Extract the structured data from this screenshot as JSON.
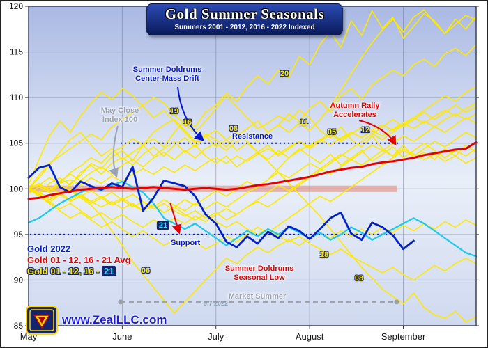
{
  "annotations": {
    "may_close_1": "May Close",
    "may_close_2": "Index 100",
    "drift_1": "Summer Doldrums",
    "drift_2": "Center-Mass Drift",
    "resistance": "Resistance",
    "autumn_1": "Autumn Rally",
    "autumn_2": "Accelerates",
    "support": "Support",
    "low_1": "Summer Doldrums",
    "low_2": "Seasonal Low",
    "market_summer": "Market Summer"
  },
  "legend": {
    "gold_2022": "Gold 2022",
    "gold_avg": "Gold 01 - 12, 16 - 21 Avg",
    "gold_years_prefix": "Gold 01 - 12, 16 - ",
    "gold_2021": "21"
  },
  "footer": {
    "website": "www.ZealLLC.com",
    "watermark": "9.7.2022"
  },
  "colors": {
    "yellow": "#ffe800",
    "red": "#e60000",
    "blue": "#0020c8",
    "cyan": "#18c8f0",
    "navy": "#14246e"
  },
  "chart_data": {
    "type": "line",
    "title": "Gold Summer Seasonals",
    "subtitle": "Summers 2001 - 2012, 2016 - 2022 Indexed",
    "ylim": [
      85,
      120
    ],
    "yticks": [
      85,
      90,
      95,
      100,
      105,
      110,
      115,
      120
    ],
    "months": [
      "May",
      "June",
      "July",
      "August",
      "September"
    ],
    "month_positions": [
      0,
      0.2093,
      0.4186,
      0.6279,
      0.8372
    ],
    "levels": {
      "resistance": {
        "value": 105,
        "color": "#0016cf"
      },
      "support": {
        "value": 95,
        "color": "#0016cf"
      },
      "market_summer": {
        "value": 87.6,
        "color": "#9aa0a6"
      },
      "index_band": {
        "from": 99.65,
        "to": 100.35,
        "color": "rgba(232,130,110,0.55)"
      }
    },
    "line_labels": [
      {
        "text": "19",
        "t": 0.325,
        "v": 108.5,
        "style": "yellow"
      },
      {
        "text": "16",
        "t": 0.355,
        "v": 107.3,
        "style": "yellow"
      },
      {
        "text": "08",
        "t": 0.458,
        "v": 106.6,
        "style": "yellow"
      },
      {
        "text": "11",
        "t": 0.615,
        "v": 107.3,
        "style": "yellow"
      },
      {
        "text": "05",
        "t": 0.678,
        "v": 106.2,
        "style": "yellow"
      },
      {
        "text": "12",
        "t": 0.752,
        "v": 106.4,
        "style": "yellow"
      },
      {
        "text": "20",
        "t": 0.572,
        "v": 112.6,
        "style": "yellow"
      },
      {
        "text": "06",
        "t": 0.262,
        "v": 91.0,
        "style": "yellow"
      },
      {
        "text": "18",
        "t": 0.66,
        "v": 92.8,
        "style": "yellow"
      },
      {
        "text": "08",
        "t": 0.738,
        "v": 90.2,
        "style": "yellow"
      },
      {
        "text": "21",
        "t": 0.3,
        "v": 96.0,
        "style": "cyan"
      }
    ],
    "series": [
      {
        "name": "2002",
        "color": "#ffe800",
        "width": 1.6,
        "values": [
          100,
          101.2,
          102.6,
          104.0,
          105.4,
          106.2,
          104.8,
          103.6,
          104.4,
          103.2,
          104.0,
          104.8,
          103.6,
          104.4,
          105.2,
          104.0,
          104.8,
          103.6,
          102.8,
          103.6,
          102.4,
          103.2,
          104.0,
          103.2,
          104.2,
          103.4,
          104.4,
          103.6,
          102.8,
          103.8,
          102.6,
          103.4,
          104.2,
          103.0,
          103.8,
          104.6,
          103.4,
          104.2,
          105.0,
          104.2,
          103.4,
          104.2,
          103.6,
          104.4
        ]
      },
      {
        "name": "2004",
        "color": "#ffe800",
        "width": 1.6,
        "values": [
          100,
          99.6,
          99.0,
          99.6,
          98.8,
          99.4,
          98.6,
          98.0,
          98.6,
          97.8,
          98.4,
          97.6,
          98.2,
          97.4,
          98.0,
          98.8,
          98.2,
          99.0,
          99.8,
          99.2,
          100.0,
          100.8,
          100.2,
          101.0,
          101.8,
          101.2,
          102.0,
          102.8,
          102.2,
          103.0,
          103.8,
          103.2,
          104.0,
          104.8,
          104.2,
          105.0,
          105.8,
          105.2,
          106.0,
          106.8,
          106.2,
          107.0,
          107.8,
          107.2
        ]
      },
      {
        "name": "2005",
        "color": "#ffe800",
        "width": 1.6,
        "values": [
          100,
          99.6,
          100.2,
          99.4,
          100.0,
          99.2,
          99.8,
          99.0,
          99.6,
          98.8,
          99.4,
          98.6,
          98.0,
          98.8,
          98.2,
          97.6,
          98.4,
          97.8,
          98.6,
          98.0,
          98.8,
          99.6,
          100.2,
          101.0,
          102.2,
          103.4,
          104.2,
          104.8,
          105.4,
          106.0,
          105.4,
          106.2,
          105.6,
          106.4,
          107.0,
          106.4,
          107.2,
          107.8,
          107.2,
          108.0,
          108.6,
          108.0,
          108.8,
          109.4
        ]
      },
      {
        "name": "2006",
        "color": "#ffe800",
        "width": 1.6,
        "values": [
          99.5,
          100.2,
          99.6,
          100.4,
          99.8,
          99.0,
          98.2,
          97.0,
          95.4,
          93.8,
          92.0,
          90.6,
          89.2,
          87.8,
          86.4,
          87.6,
          88.8,
          90.0,
          91.2,
          92.4,
          91.8,
          92.8,
          93.6,
          93.0,
          93.8,
          94.4,
          93.8,
          94.6,
          95.2,
          94.6,
          95.4,
          94.8,
          95.6,
          95.0,
          95.8,
          95.2,
          96.0,
          95.4,
          96.2,
          95.6,
          96.4,
          95.8,
          96.6,
          96.0
        ]
      },
      {
        "name": "2007",
        "color": "#ffe800",
        "width": 1.6,
        "values": [
          100.5,
          103.2,
          105.8,
          107.4,
          106.2,
          108.0,
          109.4,
          110.6,
          109.8,
          111.0,
          110.2,
          109.0,
          107.8,
          108.6,
          107.4,
          106.2,
          105.0,
          105.8,
          104.6,
          105.4,
          104.2,
          105.0,
          104.0,
          104.8,
          103.6,
          104.4,
          105.2,
          104.4,
          105.2,
          106.0,
          105.2,
          106.0,
          106.8,
          106.0,
          106.8,
          107.6,
          106.8,
          107.6,
          108.4,
          107.6,
          108.4,
          109.2,
          108.4,
          109.0
        ]
      },
      {
        "name": "2008",
        "color": "#ffe800",
        "width": 1.6,
        "values": [
          100,
          99.4,
          100.6,
          101.2,
          100.4,
          101.8,
          102.6,
          101.6,
          102.8,
          103.4,
          102.6,
          103.8,
          104.6,
          103.6,
          104.8,
          105.6,
          104.6,
          105.8,
          106.4,
          105.4,
          106.2,
          105.2,
          104.0,
          103.0,
          101.8,
          100.6,
          99.4,
          98.2,
          97.0,
          95.6,
          94.2,
          92.8,
          91.4,
          90.2,
          89.0,
          88.2,
          87.4,
          88.6,
          87.0,
          86.2,
          85.8,
          86.6,
          85.4,
          86.0
        ]
      },
      {
        "name": "2009",
        "color": "#ffe800",
        "width": 1.6,
        "values": [
          100,
          99.2,
          98.4,
          97.6,
          96.8,
          97.4,
          96.6,
          95.8,
          96.4,
          95.6,
          94.8,
          95.4,
          94.6,
          93.8,
          94.4,
          93.6,
          94.2,
          93.4,
          94.0,
          94.8,
          94.2,
          95.0,
          95.8,
          95.2,
          96.0,
          96.8,
          97.6,
          98.4,
          99.2,
          98.6,
          99.4,
          100.2,
          101.0,
          101.8,
          102.6,
          103.4,
          104.2,
          103.6,
          104.4,
          105.2,
          104.6,
          105.4,
          106.2,
          105.6
        ]
      },
      {
        "name": "2010",
        "color": "#ffe800",
        "width": 1.6,
        "values": [
          100,
          100.4,
          99.8,
          100.6,
          101.0,
          100.4,
          101.2,
          100.6,
          101.4,
          100.8,
          101.6,
          102.2,
          101.6,
          102.4,
          101.8,
          102.6,
          102.0,
          102.8,
          103.4,
          102.8,
          103.6,
          103.0,
          103.8,
          104.4,
          103.8,
          104.6,
          105.2,
          104.6,
          105.4,
          104.8,
          105.6,
          106.2,
          105.6,
          106.4,
          105.8,
          106.6,
          107.2,
          106.6,
          107.4,
          106.8,
          107.6,
          108.2,
          107.6,
          108.2
        ]
      },
      {
        "name": "2011",
        "color": "#ffe800",
        "width": 1.6,
        "values": [
          100,
          100.6,
          99.8,
          100.8,
          101.6,
          100.9,
          101.8,
          102.4,
          101.6,
          102.6,
          103.2,
          102.4,
          103.4,
          104.0,
          103.2,
          104.2,
          103.4,
          104.4,
          105.0,
          104.2,
          105.2,
          106.0,
          105.2,
          106.2,
          107.0,
          106.2,
          107.2,
          106.4,
          107.6,
          109.0,
          110.8,
          112.6,
          114.4,
          116.0,
          117.4,
          118.6,
          117.2,
          118.8,
          119.6,
          118.2,
          117.0,
          118.0,
          119.0,
          118.5
        ]
      },
      {
        "name": "2012",
        "color": "#ffe800",
        "width": 1.6,
        "values": [
          100,
          99.2,
          98.6,
          97.8,
          98.4,
          97.6,
          96.8,
          97.4,
          96.6,
          97.2,
          96.4,
          95.8,
          96.6,
          96.0,
          96.8,
          96.2,
          97.0,
          96.4,
          97.2,
          97.8,
          97.2,
          98.0,
          98.6,
          98.0,
          98.8,
          99.6,
          100.4,
          101.2,
          102.0,
          102.8,
          103.6,
          104.4,
          105.2,
          106.0,
          105.4,
          106.2,
          107.0,
          107.8,
          108.6,
          109.4,
          110.2,
          109.6,
          110.6,
          111.2
        ]
      },
      {
        "name": "2016",
        "color": "#ffe800",
        "width": 1.6,
        "values": [
          100,
          101.5,
          102.8,
          103.6,
          104.4,
          105.2,
          106.0,
          105.4,
          106.8,
          107.6,
          108.4,
          109.2,
          110.0,
          109.4,
          108.2,
          107.0,
          106.2,
          107.4,
          108.8,
          110.2,
          109.0,
          107.8,
          106.6,
          107.2,
          108.0,
          107.4,
          108.6,
          107.8,
          106.4,
          105.6,
          106.8,
          105.4,
          104.6,
          105.8,
          104.4,
          103.6,
          104.8,
          103.4,
          104.0,
          103.2,
          104.4,
          103.6,
          104.8,
          104.0
        ]
      },
      {
        "name": "2017",
        "color": "#ffe800",
        "width": 1.6,
        "values": [
          100,
          99.4,
          98.8,
          99.4,
          98.6,
          99.2,
          98.4,
          99.0,
          98.2,
          98.8,
          98.0,
          98.6,
          97.8,
          98.4,
          97.6,
          97.0,
          97.6,
          96.8,
          97.4,
          96.6,
          97.2,
          98.0,
          98.8,
          99.6,
          100.4,
          99.8,
          100.6,
          101.4,
          102.2,
          101.6,
          102.4,
          103.2,
          102.6,
          103.4,
          104.2,
          103.6,
          104.4,
          103.8,
          103.2,
          103.8,
          103.0,
          103.6,
          102.8,
          103.4
        ]
      },
      {
        "name": "2018",
        "color": "#ffe800",
        "width": 1.6,
        "values": [
          100,
          99.6,
          100.2,
          99.4,
          100.0,
          99.2,
          98.6,
          99.2,
          98.4,
          99.0,
          98.2,
          97.6,
          98.2,
          97.4,
          98.0,
          97.2,
          96.6,
          97.2,
          96.4,
          95.8,
          96.4,
          95.6,
          95.0,
          95.6,
          94.8,
          94.2,
          94.8,
          94.0,
          93.4,
          92.8,
          93.4,
          92.6,
          92.0,
          91.4,
          90.8,
          91.4,
          90.6,
          90.0,
          90.8,
          91.6,
          91.0,
          91.8,
          92.4,
          91.8
        ]
      },
      {
        "name": "2019",
        "color": "#ffe800",
        "width": 1.6,
        "values": [
          100,
          100.4,
          101.2,
          100.6,
          101.8,
          102.5,
          103.4,
          102.8,
          104.0,
          104.6,
          105.5,
          104.8,
          106.2,
          107.0,
          107.6,
          106.4,
          105.2,
          106.0,
          105.4,
          104.6,
          105.8,
          106.6,
          107.4,
          106.2,
          107.0,
          108.2,
          107.4,
          108.8,
          109.6,
          108.4,
          110.2,
          111.0,
          109.8,
          111.4,
          112.2,
          113.0,
          112.4,
          113.6,
          114.2,
          113.4,
          114.8,
          115.4,
          114.6,
          115.8
        ]
      },
      {
        "name": "2020",
        "color": "#ffe800",
        "width": 1.6,
        "values": [
          100,
          99.2,
          98.5,
          99.4,
          100.6,
          101.5,
          102.8,
          102.2,
          103.5,
          104.2,
          103.1,
          104.8,
          105.5,
          104.6,
          106.2,
          107.5,
          106.8,
          108.4,
          109.2,
          110.5,
          109.6,
          111.2,
          112.4,
          111.5,
          113.0,
          112.2,
          114.5,
          113.6,
          115.8,
          117.2,
          115.5,
          118.4,
          116.8,
          119.5,
          117.6,
          118.8,
          116.5,
          117.8,
          119.2,
          118.4,
          117.0,
          118.6,
          117.5,
          118.9
        ]
      },
      {
        "name": "2021",
        "color": "#18c8f0",
        "width": 2.2,
        "values": [
          96.3,
          96.8,
          97.6,
          98.4,
          99.0,
          99.6,
          100.2,
          99.8,
          100.4,
          100.8,
          100.2,
          99.6,
          98.4,
          96.8,
          96.2,
          95.6,
          96.2,
          95.4,
          94.6,
          93.8,
          94.6,
          95.4,
          94.8,
          95.6,
          95.0,
          95.8,
          95.2,
          94.6,
          95.2,
          94.4,
          95.0,
          95.8,
          95.2,
          94.4,
          95.0,
          95.6,
          96.2,
          96.8,
          96.2,
          95.4,
          94.6,
          93.8,
          93.0,
          92.6
        ]
      },
      {
        "name": "2022",
        "color": "#0020c8",
        "width": 2.8,
        "values": [
          101.2,
          102.3,
          102.6,
          100.2,
          99.6,
          100.8,
          100.3,
          99.9,
          100.6,
          100.2,
          102.4,
          97.6,
          99.0,
          100.9,
          100.6,
          100.3,
          99.2,
          97.2,
          96.2,
          94.2,
          93.6,
          94.8,
          94.0,
          95.3,
          94.6,
          95.9,
          95.4,
          94.5,
          95.6,
          96.8,
          97.4,
          95.1,
          94.4,
          96.3,
          95.8,
          94.9,
          93.4,
          94.3,
          null,
          null,
          null,
          null,
          null,
          null
        ]
      },
      {
        "name": "avg",
        "color": "#e60000",
        "width": 3,
        "values": [
          98.9,
          99.0,
          99.3,
          99.5,
          99.7,
          99.9,
          100.0,
          100.1,
          100.2,
          100.1,
          100.0,
          100.1,
          100.2,
          100.1,
          100.0,
          99.9,
          100.0,
          100.1,
          100.0,
          99.9,
          100.0,
          100.2,
          100.4,
          100.5,
          100.7,
          100.9,
          101.1,
          101.3,
          101.6,
          101.9,
          102.1,
          102.3,
          102.4,
          102.7,
          102.9,
          103.0,
          103.2,
          103.4,
          103.7,
          103.9,
          104.1,
          104.3,
          104.4,
          105.1
        ]
      }
    ]
  }
}
